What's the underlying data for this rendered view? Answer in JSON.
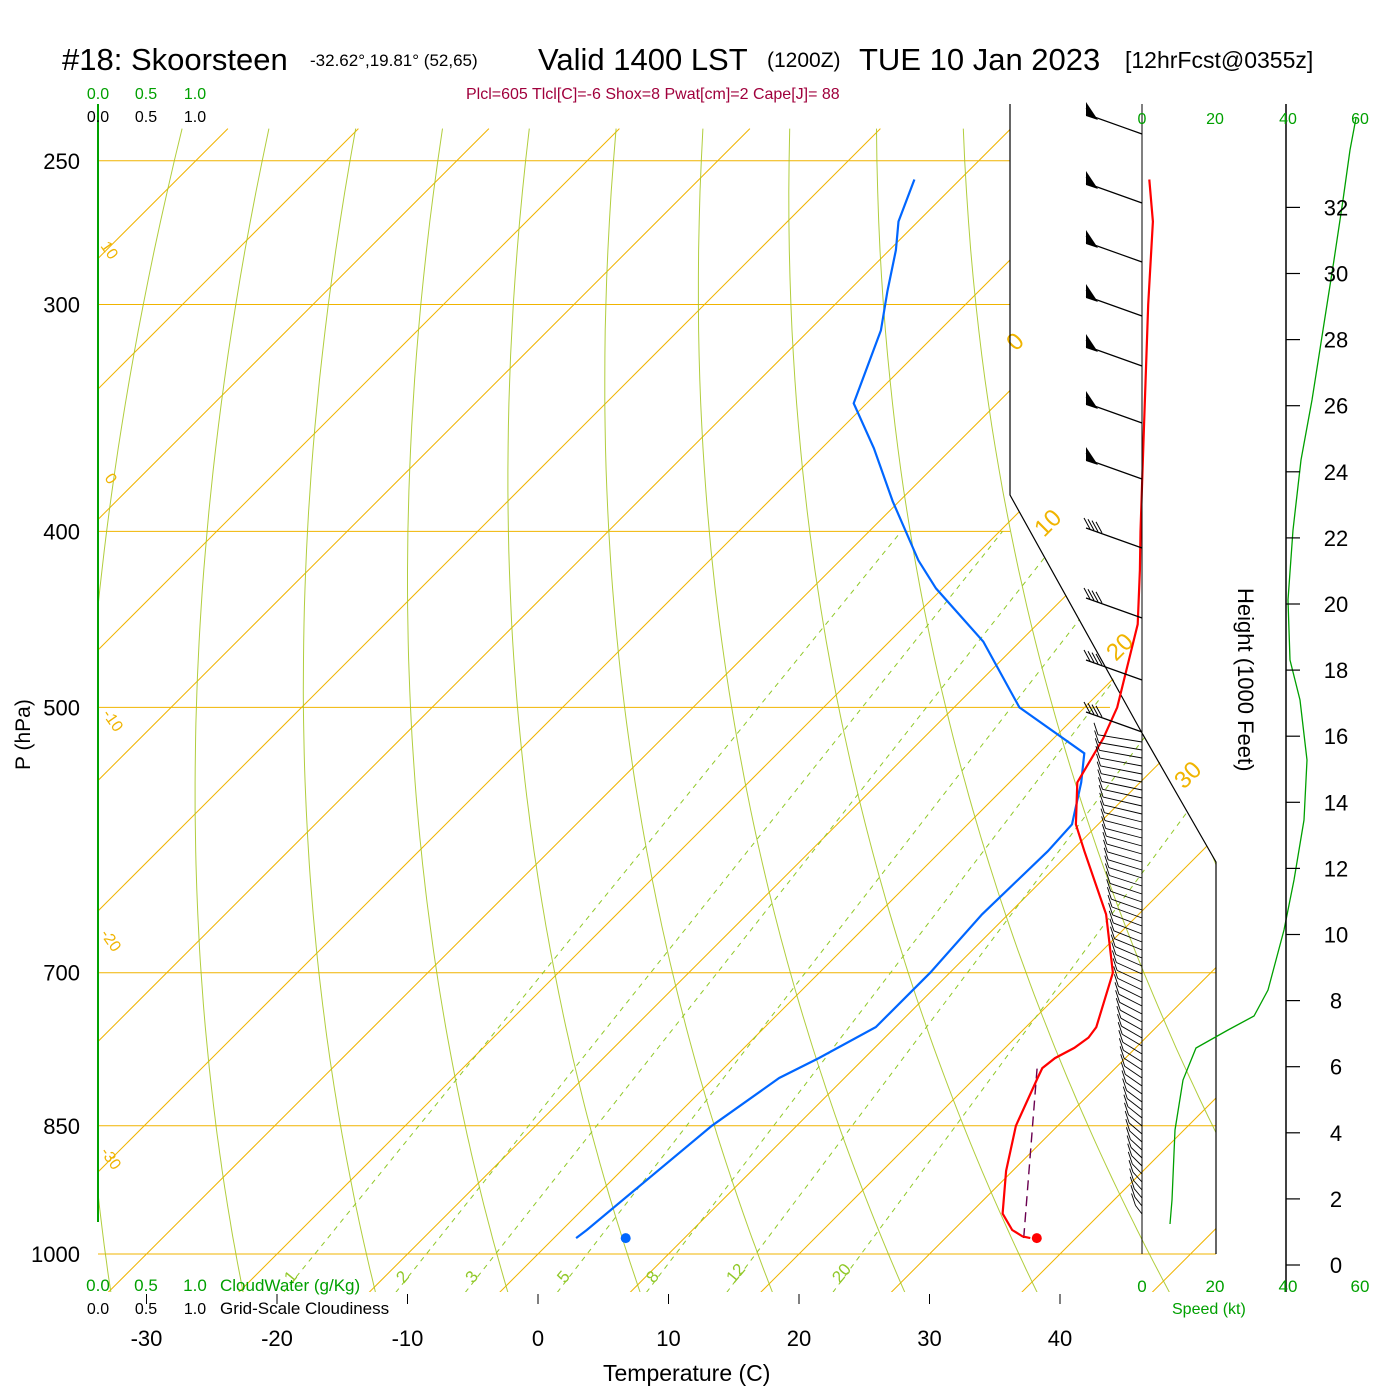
{
  "header": {
    "station": "#18: Skoorsteen",
    "coords": "-32.62°,19.81° (52,65)",
    "valid": "Valid 1400 LST",
    "zulu": "(1200Z)",
    "date": "TUE 10 Jan 2023",
    "forecast": "[12hrFcst@0355z]",
    "params": "Plcl=605 Tlcl[C]=-6 Shox=8 Pwat[cm]=2 Cape[J]= 88"
  },
  "colors": {
    "temperature": "#ff0000",
    "dewpoint": "#0066ff",
    "isotherm": "#f0b400",
    "mixing_ratio": "#90c828",
    "green": "#00a000",
    "params": "#a0003c",
    "parcel": "#6a0050"
  },
  "cloud_scale": {
    "water_ticks": [
      "0.0",
      "0.5",
      "1.0"
    ],
    "water_label": "CloudWater (g/Kg)",
    "cloud_ticks": [
      "0.0",
      "0.5",
      "1.0"
    ],
    "cloud_label": "Grid-Scale Cloudiness"
  },
  "speed_scale": {
    "ticks": [
      "0",
      "20",
      "40",
      "60"
    ],
    "label": "Speed (kt)"
  },
  "chart_data": {
    "type": "line",
    "xlabel": "Temperature (C)",
    "ylabel": "P (hPa)",
    "y2label": "Height (1000 Feet)",
    "x_ticks": [
      "-30",
      "-20",
      "-10",
      "0",
      "10",
      "20",
      "30",
      "40"
    ],
    "p_ticks": [
      "250",
      "300",
      "400",
      "500",
      "700",
      "850",
      "1000"
    ],
    "height_ticks": [
      "0",
      "2",
      "4",
      "6",
      "8",
      "10",
      "12",
      "14",
      "16",
      "18",
      "20",
      "22",
      "24",
      "26",
      "28",
      "30",
      "32"
    ],
    "isotherm_labels": [
      "10",
      "0",
      "-10",
      "-20",
      "-30",
      "0",
      "10",
      "20",
      "30"
    ],
    "mixing_ratio_labels": [
      "1",
      "2",
      "3",
      "5",
      "8",
      "12",
      "20"
    ],
    "temperature_profile": [
      {
        "p": 980,
        "t": 36.5
      },
      {
        "p": 978,
        "t": 35.8
      },
      {
        "p": 970,
        "t": 34.5
      },
      {
        "p": 950,
        "t": 32.5
      },
      {
        "p": 900,
        "t": 29.5
      },
      {
        "p": 850,
        "t": 26.8
      },
      {
        "p": 800,
        "t": 24.8
      },
      {
        "p": 790,
        "t": 24.4
      },
      {
        "p": 780,
        "t": 24.6
      },
      {
        "p": 770,
        "t": 25.3
      },
      {
        "p": 760,
        "t": 25.6
      },
      {
        "p": 750,
        "t": 25.4
      },
      {
        "p": 700,
        "t": 22.5
      },
      {
        "p": 650,
        "t": 17.5
      },
      {
        "p": 600,
        "t": 11.0
      },
      {
        "p": 580,
        "t": 8.3
      },
      {
        "p": 550,
        "t": 5.2
      },
      {
        "p": 520,
        "t": 3.8
      },
      {
        "p": 500,
        "t": 2.5
      },
      {
        "p": 450,
        "t": -2.3
      },
      {
        "p": 420,
        "t": -6.3
      },
      {
        "p": 400,
        "t": -9.2
      },
      {
        "p": 350,
        "t": -17.0
      },
      {
        "p": 300,
        "t": -26.0
      },
      {
        "p": 270,
        "t": -32.0
      },
      {
        "p": 256,
        "t": -35.5
      }
    ],
    "dewpoint_profile": [
      {
        "p": 980,
        "td": 1.7
      },
      {
        "p": 970,
        "td": 1.9
      },
      {
        "p": 850,
        "td": 3.5
      },
      {
        "p": 800,
        "td": 5.0
      },
      {
        "p": 780,
        "td": 6.5
      },
      {
        "p": 750,
        "td": 8.5
      },
      {
        "p": 700,
        "td": 8.5
      },
      {
        "p": 650,
        "td": 8.0
      },
      {
        "p": 600,
        "td": 8.2
      },
      {
        "p": 580,
        "td": 8.0
      },
      {
        "p": 550,
        "td": 5.5
      },
      {
        "p": 530,
        "td": 3.5
      },
      {
        "p": 500,
        "td": -5.0
      },
      {
        "p": 460,
        "td": -12.8
      },
      {
        "p": 430,
        "td": -20.5
      },
      {
        "p": 415,
        "td": -24.0
      },
      {
        "p": 385,
        "td": -30.5
      },
      {
        "p": 360,
        "td": -36.0
      },
      {
        "p": 340,
        "td": -41.0
      },
      {
        "p": 310,
        "td": -44.5
      },
      {
        "p": 295,
        "td": -47.0
      },
      {
        "p": 280,
        "td": -49.5
      },
      {
        "p": 270,
        "td": -51.5
      },
      {
        "p": 256,
        "td": -53.5
      }
    ],
    "parcel_path": [
      {
        "p": 980,
        "t": 36.0
      },
      {
        "p": 790,
        "t": 24.0
      }
    ],
    "surface_temp": {
      "p": 980,
      "t": 37.0
    },
    "surface_dewpoint": {
      "p": 980,
      "td": 5.5
    },
    "xlim": [
      -30,
      40
    ],
    "ylim": [
      1020,
      250
    ]
  }
}
